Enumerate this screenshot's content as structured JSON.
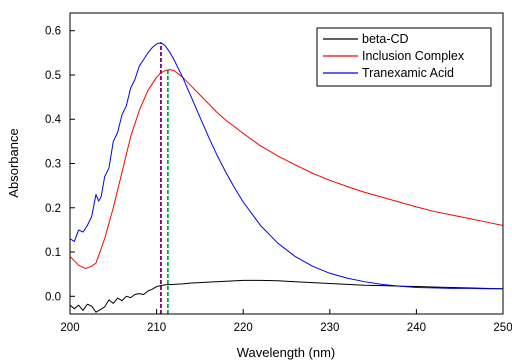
{
  "chart_data": {
    "type": "line",
    "title": "",
    "xlabel": "Wavelength (nm)",
    "ylabel": "Absorbance",
    "xlim": [
      200,
      250
    ],
    "ylim": [
      -0.04,
      0.64
    ],
    "xticks": [
      200,
      210,
      220,
      230,
      240,
      250
    ],
    "yticks": [
      0.0,
      0.1,
      0.2,
      0.3,
      0.4,
      0.5,
      0.6
    ],
    "xtick_labels": [
      "200",
      "210",
      "220",
      "230",
      "240",
      "250"
    ],
    "ytick_labels": [
      "0.0",
      "0.1",
      "0.2",
      "0.3",
      "0.4",
      "0.5",
      "0.6"
    ],
    "grid": false,
    "legend_position": "top-right",
    "series": [
      {
        "name": "beta-CD",
        "color": "#000000",
        "points": [
          [
            200,
            -0.02
          ],
          [
            200.5,
            -0.028
          ],
          [
            201,
            -0.02
          ],
          [
            201.5,
            -0.032
          ],
          [
            202,
            -0.018
          ],
          [
            202.5,
            -0.022
          ],
          [
            203,
            -0.036
          ],
          [
            203.5,
            -0.03
          ],
          [
            204,
            -0.024
          ],
          [
            204.5,
            -0.008
          ],
          [
            205,
            -0.016
          ],
          [
            205.5,
            -0.004
          ],
          [
            206,
            -0.01
          ],
          [
            206.5,
            0.0
          ],
          [
            207,
            -0.003
          ],
          [
            207.5,
            0.004
          ],
          [
            208,
            0.006
          ],
          [
            208.5,
            0.004
          ],
          [
            209,
            0.012
          ],
          [
            209.5,
            0.016
          ],
          [
            210,
            0.022
          ],
          [
            210.5,
            0.024
          ],
          [
            211,
            0.026
          ],
          [
            212,
            0.027
          ],
          [
            213,
            0.028
          ],
          [
            214,
            0.03
          ],
          [
            215,
            0.031
          ],
          [
            216,
            0.032
          ],
          [
            218,
            0.034
          ],
          [
            220,
            0.036
          ],
          [
            222,
            0.036
          ],
          [
            224,
            0.035
          ],
          [
            226,
            0.033
          ],
          [
            228,
            0.031
          ],
          [
            230,
            0.029
          ],
          [
            232,
            0.027
          ],
          [
            234,
            0.025
          ],
          [
            236,
            0.024
          ],
          [
            238,
            0.023
          ],
          [
            240,
            0.022
          ],
          [
            242,
            0.021
          ],
          [
            244,
            0.02
          ],
          [
            246,
            0.019
          ],
          [
            248,
            0.018
          ],
          [
            250,
            0.017
          ]
        ]
      },
      {
        "name": "Inclusion Complex",
        "color": "#ff0000",
        "points": [
          [
            200,
            0.09
          ],
          [
            201,
            0.07
          ],
          [
            201.8,
            0.063
          ],
          [
            202.5,
            0.068
          ],
          [
            203,
            0.075
          ],
          [
            204,
            0.13
          ],
          [
            205,
            0.2
          ],
          [
            206,
            0.28
          ],
          [
            207,
            0.36
          ],
          [
            208,
            0.42
          ],
          [
            209,
            0.465
          ],
          [
            210,
            0.495
          ],
          [
            210.5,
            0.505
          ],
          [
            211,
            0.51
          ],
          [
            211.5,
            0.512
          ],
          [
            212,
            0.51
          ],
          [
            213,
            0.495
          ],
          [
            214,
            0.475
          ],
          [
            215,
            0.455
          ],
          [
            216,
            0.435
          ],
          [
            217,
            0.415
          ],
          [
            218,
            0.398
          ],
          [
            220,
            0.368
          ],
          [
            222,
            0.34
          ],
          [
            224,
            0.317
          ],
          [
            226,
            0.297
          ],
          [
            228,
            0.278
          ],
          [
            230,
            0.262
          ],
          [
            232,
            0.248
          ],
          [
            234,
            0.235
          ],
          [
            236,
            0.224
          ],
          [
            238,
            0.213
          ],
          [
            240,
            0.202
          ],
          [
            242,
            0.192
          ],
          [
            244,
            0.184
          ],
          [
            246,
            0.176
          ],
          [
            248,
            0.168
          ],
          [
            250,
            0.16
          ]
        ]
      },
      {
        "name": "Tranexamic Acid",
        "color": "#0000ff",
        "points": [
          [
            200,
            0.13
          ],
          [
            200.5,
            0.124
          ],
          [
            201,
            0.15
          ],
          [
            201.5,
            0.145
          ],
          [
            202,
            0.16
          ],
          [
            202.5,
            0.18
          ],
          [
            203,
            0.23
          ],
          [
            203.3,
            0.215
          ],
          [
            203.6,
            0.225
          ],
          [
            204,
            0.27
          ],
          [
            204.5,
            0.29
          ],
          [
            205,
            0.35
          ],
          [
            205.5,
            0.37
          ],
          [
            206,
            0.41
          ],
          [
            206.5,
            0.43
          ],
          [
            207,
            0.47
          ],
          [
            207.5,
            0.49
          ],
          [
            208,
            0.52
          ],
          [
            208.5,
            0.535
          ],
          [
            209,
            0.55
          ],
          [
            209.5,
            0.562
          ],
          [
            210,
            0.57
          ],
          [
            210.5,
            0.573
          ],
          [
            211,
            0.566
          ],
          [
            211.5,
            0.552
          ],
          [
            212,
            0.535
          ],
          [
            213,
            0.495
          ],
          [
            214,
            0.45
          ],
          [
            215,
            0.405
          ],
          [
            216,
            0.36
          ],
          [
            217,
            0.318
          ],
          [
            218,
            0.28
          ],
          [
            219,
            0.245
          ],
          [
            220,
            0.213
          ],
          [
            222,
            0.16
          ],
          [
            224,
            0.12
          ],
          [
            226,
            0.09
          ],
          [
            228,
            0.068
          ],
          [
            230,
            0.052
          ],
          [
            232,
            0.041
          ],
          [
            234,
            0.033
          ],
          [
            236,
            0.027
          ],
          [
            238,
            0.023
          ],
          [
            240,
            0.02
          ],
          [
            242,
            0.019
          ],
          [
            244,
            0.018
          ],
          [
            246,
            0.018
          ],
          [
            248,
            0.017
          ],
          [
            250,
            0.017
          ]
        ]
      }
    ],
    "annotations": [
      {
        "kind": "vertical-dashed-line",
        "x": 210.5,
        "y_top": 0.573,
        "color": "#800080"
      },
      {
        "kind": "vertical-dashed-line",
        "x": 211.3,
        "y_top": 0.512,
        "color": "#00aa44"
      }
    ]
  }
}
